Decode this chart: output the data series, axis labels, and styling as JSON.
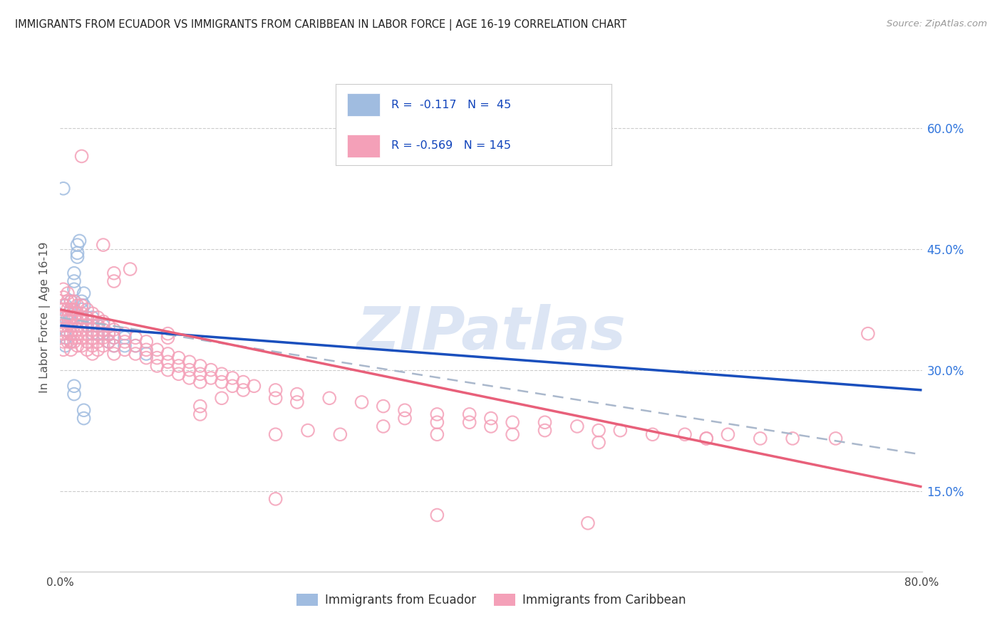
{
  "title": "IMMIGRANTS FROM ECUADOR VS IMMIGRANTS FROM CARIBBEAN IN LABOR FORCE | AGE 16-19 CORRELATION CHART",
  "source": "Source: ZipAtlas.com",
  "ylabel": "In Labor Force | Age 16-19",
  "xlim": [
    0.0,
    0.8
  ],
  "ylim": [
    0.05,
    0.68
  ],
  "yticks_right": [
    0.15,
    0.3,
    0.45,
    0.6
  ],
  "ytick_labels_right": [
    "15.0%",
    "30.0%",
    "45.0%",
    "60.0%"
  ],
  "ecuador_color": "#a0bce0",
  "caribbean_color": "#f4a0b8",
  "ecuador_line_color": "#1a4fbd",
  "caribbean_line_color": "#e8607a",
  "dashed_line_color": "#aab8cc",
  "title_color": "#222222",
  "axis_label_color": "#555555",
  "right_tick_color": "#3377dd",
  "watermark_color": "#c5d5ee",
  "ecuador_R": -0.117,
  "ecuador_N": 45,
  "caribbean_R": -0.569,
  "caribbean_N": 145,
  "ecuador_line_x0": 0.0,
  "ecuador_line_y0": 0.355,
  "ecuador_line_x1": 0.8,
  "ecuador_line_y1": 0.275,
  "caribbean_line_x0": 0.0,
  "caribbean_line_y0": 0.375,
  "caribbean_line_x1": 0.8,
  "caribbean_line_y1": 0.155,
  "dashed_line_x0": 0.0,
  "dashed_line_y0": 0.365,
  "dashed_line_x1": 0.8,
  "dashed_line_y1": 0.195,
  "ecuador_points": [
    [
      0.005,
      0.38
    ],
    [
      0.005,
      0.365
    ],
    [
      0.005,
      0.35
    ],
    [
      0.005,
      0.34
    ],
    [
      0.005,
      0.33
    ],
    [
      0.008,
      0.37
    ],
    [
      0.008,
      0.36
    ],
    [
      0.01,
      0.385
    ],
    [
      0.01,
      0.375
    ],
    [
      0.01,
      0.36
    ],
    [
      0.01,
      0.345
    ],
    [
      0.01,
      0.335
    ],
    [
      0.013,
      0.42
    ],
    [
      0.013,
      0.41
    ],
    [
      0.013,
      0.4
    ],
    [
      0.016,
      0.455
    ],
    [
      0.016,
      0.445
    ],
    [
      0.016,
      0.44
    ],
    [
      0.018,
      0.46
    ],
    [
      0.02,
      0.385
    ],
    [
      0.02,
      0.375
    ],
    [
      0.02,
      0.365
    ],
    [
      0.022,
      0.395
    ],
    [
      0.022,
      0.38
    ],
    [
      0.025,
      0.365
    ],
    [
      0.025,
      0.355
    ],
    [
      0.03,
      0.365
    ],
    [
      0.03,
      0.355
    ],
    [
      0.03,
      0.345
    ],
    [
      0.035,
      0.355
    ],
    [
      0.035,
      0.345
    ],
    [
      0.04,
      0.355
    ],
    [
      0.04,
      0.345
    ],
    [
      0.045,
      0.345
    ],
    [
      0.045,
      0.335
    ],
    [
      0.05,
      0.34
    ],
    [
      0.05,
      0.33
    ],
    [
      0.06,
      0.34
    ],
    [
      0.06,
      0.33
    ],
    [
      0.07,
      0.33
    ],
    [
      0.08,
      0.32
    ],
    [
      0.003,
      0.525
    ],
    [
      0.013,
      0.28
    ],
    [
      0.013,
      0.27
    ],
    [
      0.022,
      0.25
    ],
    [
      0.022,
      0.24
    ]
  ],
  "caribbean_points": [
    [
      0.003,
      0.4
    ],
    [
      0.003,
      0.39
    ],
    [
      0.003,
      0.38
    ],
    [
      0.003,
      0.375
    ],
    [
      0.003,
      0.365
    ],
    [
      0.003,
      0.355
    ],
    [
      0.003,
      0.345
    ],
    [
      0.003,
      0.335
    ],
    [
      0.003,
      0.325
    ],
    [
      0.007,
      0.395
    ],
    [
      0.007,
      0.385
    ],
    [
      0.007,
      0.375
    ],
    [
      0.007,
      0.365
    ],
    [
      0.007,
      0.355
    ],
    [
      0.007,
      0.345
    ],
    [
      0.007,
      0.335
    ],
    [
      0.01,
      0.385
    ],
    [
      0.01,
      0.375
    ],
    [
      0.01,
      0.365
    ],
    [
      0.01,
      0.355
    ],
    [
      0.01,
      0.345
    ],
    [
      0.01,
      0.335
    ],
    [
      0.01,
      0.325
    ],
    [
      0.013,
      0.385
    ],
    [
      0.013,
      0.375
    ],
    [
      0.013,
      0.365
    ],
    [
      0.013,
      0.355
    ],
    [
      0.013,
      0.345
    ],
    [
      0.013,
      0.335
    ],
    [
      0.016,
      0.38
    ],
    [
      0.016,
      0.37
    ],
    [
      0.016,
      0.36
    ],
    [
      0.016,
      0.35
    ],
    [
      0.016,
      0.34
    ],
    [
      0.016,
      0.33
    ],
    [
      0.02,
      0.38
    ],
    [
      0.02,
      0.37
    ],
    [
      0.02,
      0.36
    ],
    [
      0.02,
      0.35
    ],
    [
      0.02,
      0.34
    ],
    [
      0.02,
      0.33
    ],
    [
      0.025,
      0.375
    ],
    [
      0.025,
      0.365
    ],
    [
      0.025,
      0.355
    ],
    [
      0.025,
      0.345
    ],
    [
      0.025,
      0.335
    ],
    [
      0.025,
      0.325
    ],
    [
      0.03,
      0.37
    ],
    [
      0.03,
      0.36
    ],
    [
      0.03,
      0.35
    ],
    [
      0.03,
      0.34
    ],
    [
      0.03,
      0.33
    ],
    [
      0.03,
      0.32
    ],
    [
      0.035,
      0.365
    ],
    [
      0.035,
      0.355
    ],
    [
      0.035,
      0.345
    ],
    [
      0.035,
      0.335
    ],
    [
      0.035,
      0.325
    ],
    [
      0.04,
      0.36
    ],
    [
      0.04,
      0.35
    ],
    [
      0.04,
      0.34
    ],
    [
      0.04,
      0.33
    ],
    [
      0.045,
      0.355
    ],
    [
      0.045,
      0.345
    ],
    [
      0.045,
      0.335
    ],
    [
      0.05,
      0.35
    ],
    [
      0.05,
      0.34
    ],
    [
      0.05,
      0.33
    ],
    [
      0.05,
      0.32
    ],
    [
      0.06,
      0.345
    ],
    [
      0.06,
      0.335
    ],
    [
      0.06,
      0.325
    ],
    [
      0.07,
      0.34
    ],
    [
      0.07,
      0.33
    ],
    [
      0.07,
      0.32
    ],
    [
      0.08,
      0.335
    ],
    [
      0.08,
      0.325
    ],
    [
      0.08,
      0.315
    ],
    [
      0.09,
      0.325
    ],
    [
      0.09,
      0.315
    ],
    [
      0.09,
      0.305
    ],
    [
      0.1,
      0.32
    ],
    [
      0.1,
      0.31
    ],
    [
      0.1,
      0.3
    ],
    [
      0.11,
      0.315
    ],
    [
      0.11,
      0.305
    ],
    [
      0.11,
      0.295
    ],
    [
      0.12,
      0.31
    ],
    [
      0.12,
      0.3
    ],
    [
      0.12,
      0.29
    ],
    [
      0.13,
      0.305
    ],
    [
      0.13,
      0.295
    ],
    [
      0.13,
      0.285
    ],
    [
      0.14,
      0.3
    ],
    [
      0.14,
      0.29
    ],
    [
      0.15,
      0.295
    ],
    [
      0.15,
      0.285
    ],
    [
      0.16,
      0.29
    ],
    [
      0.16,
      0.28
    ],
    [
      0.17,
      0.285
    ],
    [
      0.18,
      0.28
    ],
    [
      0.2,
      0.275
    ],
    [
      0.2,
      0.265
    ],
    [
      0.22,
      0.27
    ],
    [
      0.22,
      0.26
    ],
    [
      0.25,
      0.265
    ],
    [
      0.28,
      0.26
    ],
    [
      0.3,
      0.255
    ],
    [
      0.32,
      0.25
    ],
    [
      0.32,
      0.24
    ],
    [
      0.35,
      0.245
    ],
    [
      0.35,
      0.235
    ],
    [
      0.38,
      0.245
    ],
    [
      0.38,
      0.235
    ],
    [
      0.4,
      0.24
    ],
    [
      0.4,
      0.23
    ],
    [
      0.42,
      0.235
    ],
    [
      0.45,
      0.235
    ],
    [
      0.45,
      0.225
    ],
    [
      0.48,
      0.23
    ],
    [
      0.5,
      0.225
    ],
    [
      0.52,
      0.225
    ],
    [
      0.55,
      0.22
    ],
    [
      0.58,
      0.22
    ],
    [
      0.6,
      0.215
    ],
    [
      0.62,
      0.22
    ],
    [
      0.65,
      0.215
    ],
    [
      0.68,
      0.215
    ],
    [
      0.72,
      0.215
    ],
    [
      0.75,
      0.345
    ],
    [
      0.02,
      0.565
    ],
    [
      0.04,
      0.455
    ],
    [
      0.05,
      0.42
    ],
    [
      0.05,
      0.41
    ],
    [
      0.065,
      0.425
    ],
    [
      0.1,
      0.345
    ],
    [
      0.1,
      0.34
    ],
    [
      0.13,
      0.255
    ],
    [
      0.13,
      0.245
    ],
    [
      0.15,
      0.265
    ],
    [
      0.17,
      0.275
    ],
    [
      0.2,
      0.22
    ],
    [
      0.23,
      0.225
    ],
    [
      0.26,
      0.22
    ],
    [
      0.3,
      0.23
    ],
    [
      0.35,
      0.22
    ],
    [
      0.42,
      0.22
    ],
    [
      0.5,
      0.21
    ],
    [
      0.6,
      0.215
    ],
    [
      0.2,
      0.14
    ],
    [
      0.35,
      0.12
    ],
    [
      0.49,
      0.11
    ]
  ]
}
